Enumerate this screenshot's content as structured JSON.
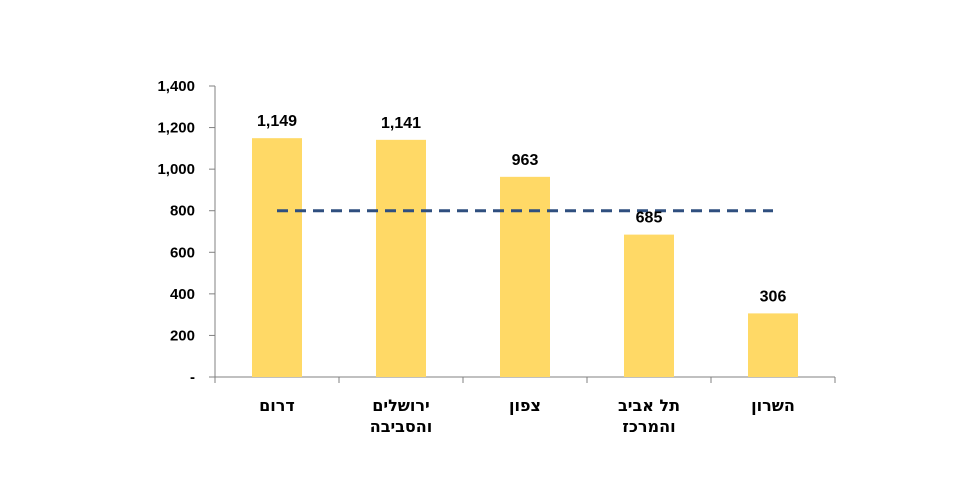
{
  "chart_data": {
    "type": "bar",
    "categories": [
      [
        "דרום"
      ],
      [
        "ירושלים",
        "והסביבה"
      ],
      [
        "צפון"
      ],
      [
        "תל אביב",
        "והמרכז"
      ],
      [
        "השרון"
      ]
    ],
    "values": [
      1149,
      1141,
      963,
      685,
      306
    ],
    "data_labels": [
      "1,149",
      "1,141",
      "963",
      "685",
      "306"
    ],
    "y_ticks": [
      0,
      200,
      400,
      600,
      800,
      1000,
      1200,
      1400
    ],
    "y_tick_labels": [
      "-",
      "200",
      "400",
      "600",
      "800",
      "1,000",
      "1,200",
      "1,400"
    ],
    "ylim": [
      0,
      1400
    ],
    "reference_line": {
      "value": 800,
      "style": "dashed"
    },
    "title": "",
    "xlabel": "",
    "ylabel": "",
    "grid": false,
    "colors": {
      "bar": "#FFD966",
      "reference_line": "#2F4F7F",
      "axis": "#808080"
    }
  }
}
